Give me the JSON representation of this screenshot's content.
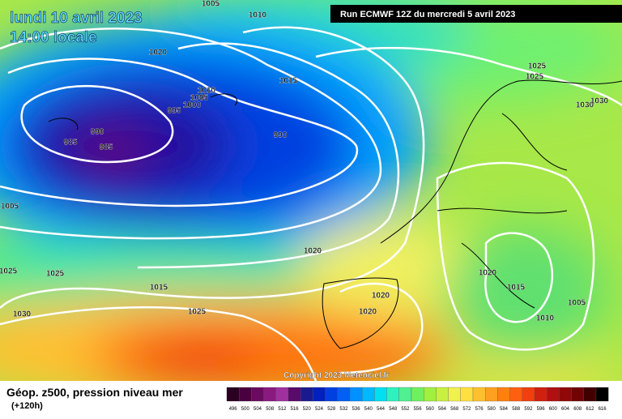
{
  "header": {
    "date": "lundi 10 avril 2023",
    "time": "14:00 locale",
    "run": "Run ECMWF 12Z du mercredi 5 avril 2023",
    "copyright": "Copyright 2023 Meteociel.fr"
  },
  "footer": {
    "title": "Géop. z500, pression niveau mer",
    "lead": "(+120h)"
  },
  "isobar_labels": [
    1005,
    1010,
    1020,
    1015,
    1010,
    1005,
    1000,
    995,
    990,
    985,
    985,
    990,
    1025,
    1025,
    1030,
    1030,
    1005,
    1020,
    1025,
    1025,
    1020,
    1015,
    1015,
    1020,
    1005,
    1020,
    1025,
    1010,
    1030
  ],
  "colorbar": {
    "labels": [
      496,
      500,
      504,
      508,
      512,
      516,
      520,
      524,
      528,
      532,
      536,
      540,
      544,
      548,
      552,
      556,
      560,
      564,
      568,
      572,
      576,
      580,
      584,
      588,
      592,
      596,
      600,
      604,
      608,
      612,
      616
    ],
    "colors": [
      "#2a0020",
      "#4a0040",
      "#6a0a60",
      "#8a1a80",
      "#a030a0",
      "#5a0a6a",
      "#1a1a90",
      "#0020c0",
      "#0040e0",
      "#0060f0",
      "#0090ff",
      "#00b8ff",
      "#00e0f0",
      "#30f0c0",
      "#50f090",
      "#70f060",
      "#a0f040",
      "#c8f040",
      "#f0f050",
      "#ffe040",
      "#ffc030",
      "#ffa020",
      "#ff8010",
      "#ff6010",
      "#f04010",
      "#d02010",
      "#b01010",
      "#900808",
      "#700404",
      "#400000",
      "#000000"
    ]
  }
}
